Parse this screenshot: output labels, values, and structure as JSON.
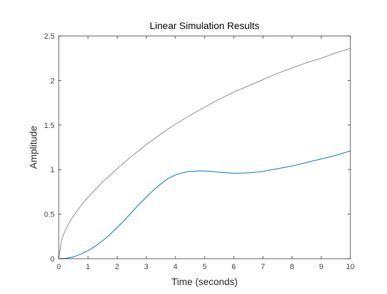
{
  "chart_data": {
    "type": "line",
    "title": "Linear Simulation Results",
    "xlabel": "Time (seconds)",
    "ylabel": "Amplitude",
    "xlim": [
      0,
      10
    ],
    "ylim": [
      0,
      2.5
    ],
    "xticks": [
      0,
      1,
      2,
      3,
      4,
      5,
      6,
      7,
      8,
      9,
      10
    ],
    "yticks": [
      0,
      0.5,
      1,
      1.5,
      2,
      2.5
    ],
    "xtick_labels": [
      "0",
      "1",
      "2",
      "3",
      "4",
      "5",
      "6",
      "7",
      "8",
      "9",
      "10"
    ],
    "ytick_labels": [
      "0",
      "0.5",
      "1",
      "1.5",
      "2",
      "2.5"
    ],
    "grid": false,
    "box": true,
    "series": [
      {
        "color": "#8c8c8c",
        "x": [
          0,
          0.1,
          0.2,
          0.3,
          0.5,
          0.75,
          1,
          1.5,
          2,
          2.5,
          3,
          3.5,
          4,
          4.5,
          5,
          5.5,
          6,
          6.5,
          7,
          7.5,
          8,
          8.5,
          9,
          9.5,
          10
        ],
        "y": [
          0,
          0.21,
          0.3,
          0.37,
          0.48,
          0.59,
          0.69,
          0.86,
          1.01,
          1.15,
          1.28,
          1.4,
          1.51,
          1.61,
          1.7,
          1.79,
          1.87,
          1.94,
          2.01,
          2.08,
          2.14,
          2.2,
          2.25,
          2.31,
          2.36
        ]
      },
      {
        "color": "#0072bd",
        "x": [
          0,
          0.25,
          0.5,
          0.75,
          1,
          1.25,
          1.5,
          1.75,
          2,
          2.25,
          2.5,
          2.75,
          3,
          3.25,
          3.5,
          3.75,
          4,
          4.25,
          4.5,
          4.75,
          5,
          5.25,
          5.5,
          5.75,
          6,
          6.25,
          6.5,
          6.75,
          7,
          7.5,
          8,
          8.5,
          9,
          9.5,
          10
        ],
        "y": [
          0,
          0.005,
          0.02,
          0.05,
          0.09,
          0.14,
          0.2,
          0.27,
          0.35,
          0.43,
          0.52,
          0.61,
          0.69,
          0.77,
          0.84,
          0.9,
          0.94,
          0.965,
          0.98,
          0.985,
          0.985,
          0.98,
          0.97,
          0.965,
          0.96,
          0.96,
          0.965,
          0.97,
          0.98,
          1.01,
          1.04,
          1.08,
          1.12,
          1.16,
          1.21
        ]
      }
    ]
  }
}
